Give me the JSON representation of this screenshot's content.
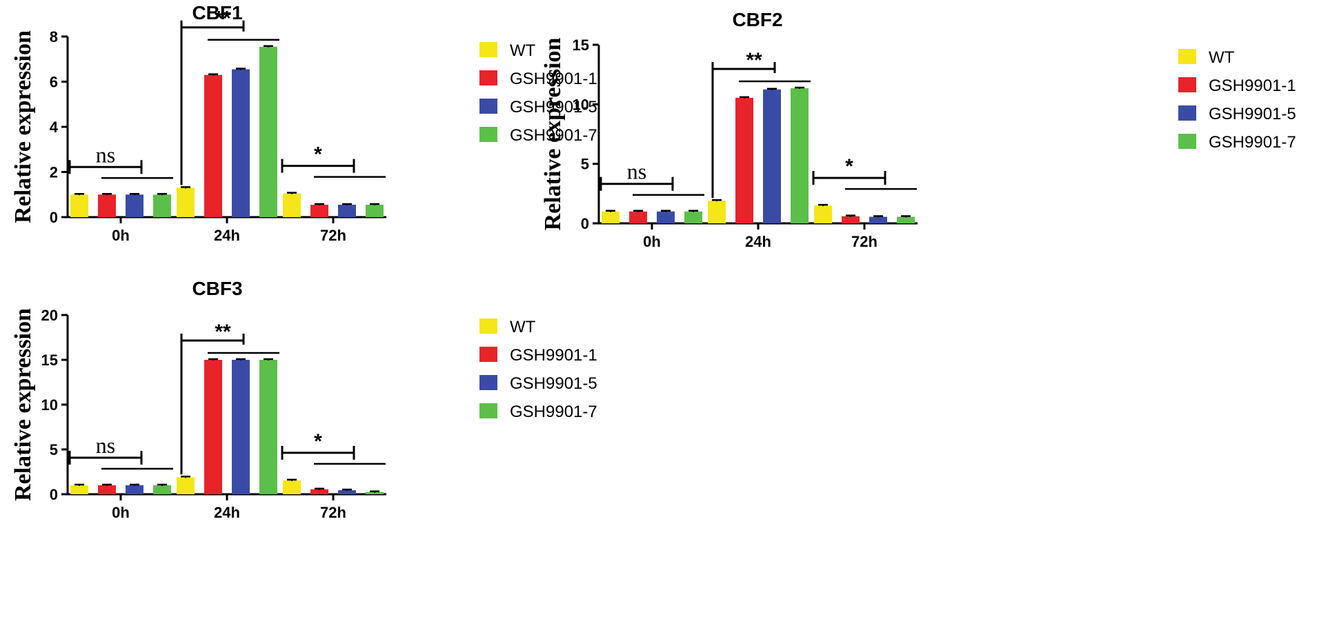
{
  "chart_data": [
    {
      "type": "bar",
      "title": "CBF1",
      "xlabel": "",
      "ylabel": "Relative expression",
      "ylim": [
        0,
        8
      ],
      "yticks": [
        0,
        2,
        4,
        6,
        8
      ],
      "categories": [
        "0h",
        "24h",
        "72h"
      ],
      "series": [
        {
          "name": "WT",
          "color": "#f5e61a",
          "values": [
            1.0,
            1.3,
            1.05
          ]
        },
        {
          "name": "GSH9901-1",
          "color": "#e8232a",
          "values": [
            1.0,
            6.3,
            0.55
          ]
        },
        {
          "name": "GSH9901-5",
          "color": "#3a4ba6",
          "values": [
            1.0,
            6.55,
            0.55
          ]
        },
        {
          "name": "GSH9901-7",
          "color": "#5cbf4a",
          "values": [
            1.0,
            7.55,
            0.55
          ]
        }
      ],
      "significance": [
        "ns",
        "**",
        "*"
      ],
      "legend": "right",
      "grid": false
    },
    {
      "type": "bar",
      "title": "CBF2",
      "xlabel": "",
      "ylabel": "Relative expression",
      "ylim": [
        0,
        15
      ],
      "yticks": [
        0,
        5,
        10,
        15
      ],
      "categories": [
        "0h",
        "24h",
        "72h"
      ],
      "series": [
        {
          "name": "WT",
          "color": "#f5e61a",
          "values": [
            1.0,
            1.9,
            1.5
          ]
        },
        {
          "name": "GSH9901-1",
          "color": "#e8232a",
          "values": [
            1.0,
            10.55,
            0.6
          ]
        },
        {
          "name": "GSH9901-5",
          "color": "#3a4ba6",
          "values": [
            1.0,
            11.25,
            0.55
          ]
        },
        {
          "name": "GSH9901-7",
          "color": "#5cbf4a",
          "values": [
            1.0,
            11.35,
            0.55
          ]
        }
      ],
      "significance": [
        "ns",
        "**",
        "*"
      ],
      "legend": "right",
      "grid": false
    },
    {
      "type": "bar",
      "title": "CBF3",
      "xlabel": "",
      "ylabel": "Relative expression",
      "ylim": [
        0,
        20
      ],
      "yticks": [
        0,
        5,
        10,
        15,
        20
      ],
      "categories": [
        "0h",
        "24h",
        "72h"
      ],
      "series": [
        {
          "name": "WT",
          "color": "#f5e61a",
          "values": [
            1.0,
            1.9,
            1.55
          ]
        },
        {
          "name": "GSH9901-1",
          "color": "#e8232a",
          "values": [
            1.0,
            15.0,
            0.55
          ]
        },
        {
          "name": "GSH9901-5",
          "color": "#3a4ba6",
          "values": [
            1.0,
            15.0,
            0.45
          ]
        },
        {
          "name": "GSH9901-7",
          "color": "#5cbf4a",
          "values": [
            1.0,
            15.0,
            0.25
          ]
        }
      ],
      "significance": [
        "ns",
        "**",
        "*"
      ],
      "legend": "right",
      "grid": false
    }
  ]
}
